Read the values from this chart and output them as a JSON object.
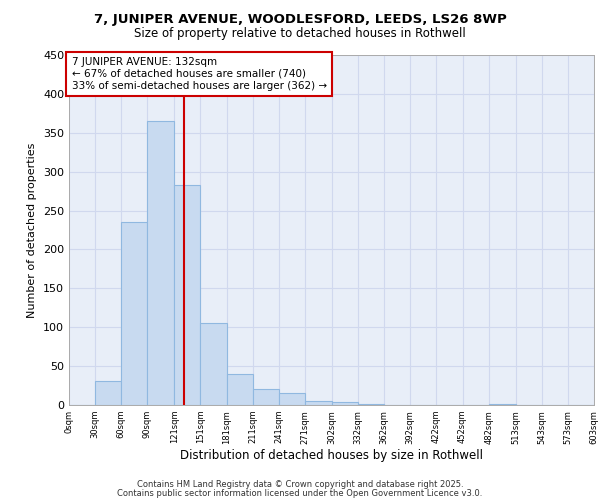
{
  "title_line1": "7, JUNIPER AVENUE, WOODLESFORD, LEEDS, LS26 8WP",
  "title_line2": "Size of property relative to detached houses in Rothwell",
  "bar_edges": [
    0,
    30,
    60,
    90,
    121,
    151,
    181,
    211,
    241,
    271,
    302,
    332,
    362,
    392,
    422,
    452,
    482,
    513,
    543,
    573,
    603
  ],
  "bar_heights": [
    0,
    31,
    235,
    365,
    283,
    105,
    40,
    21,
    15,
    5,
    4,
    1,
    0,
    0,
    0,
    0,
    1,
    0,
    0,
    0,
    0
  ],
  "bar_color": "#c8daf0",
  "bar_edge_color": "#90b8e0",
  "property_size": 132,
  "vline_color": "#cc0000",
  "annotation_text": "7 JUNIPER AVENUE: 132sqm\n← 67% of detached houses are smaller (740)\n33% of semi-detached houses are larger (362) →",
  "annotation_box_color": "#ffffff",
  "annotation_box_edge_color": "#cc0000",
  "xlabel": "Distribution of detached houses by size in Rothwell",
  "ylabel": "Number of detached properties",
  "footer_line1": "Contains HM Land Registry data © Crown copyright and database right 2025.",
  "footer_line2": "Contains public sector information licensed under the Open Government Licence v3.0.",
  "xlim": [
    0,
    603
  ],
  "ylim": [
    0,
    450
  ],
  "yticks": [
    0,
    50,
    100,
    150,
    200,
    250,
    300,
    350,
    400,
    450
  ],
  "xtick_labels": [
    "0sqm",
    "30sqm",
    "60sqm",
    "90sqm",
    "121sqm",
    "151sqm",
    "181sqm",
    "211sqm",
    "241sqm",
    "271sqm",
    "302sqm",
    "332sqm",
    "362sqm",
    "392sqm",
    "422sqm",
    "452sqm",
    "482sqm",
    "513sqm",
    "543sqm",
    "573sqm",
    "603sqm"
  ],
  "background_color": "#ffffff",
  "grid_color": "#d0d8ee",
  "axes_bg_color": "#e8eef8"
}
